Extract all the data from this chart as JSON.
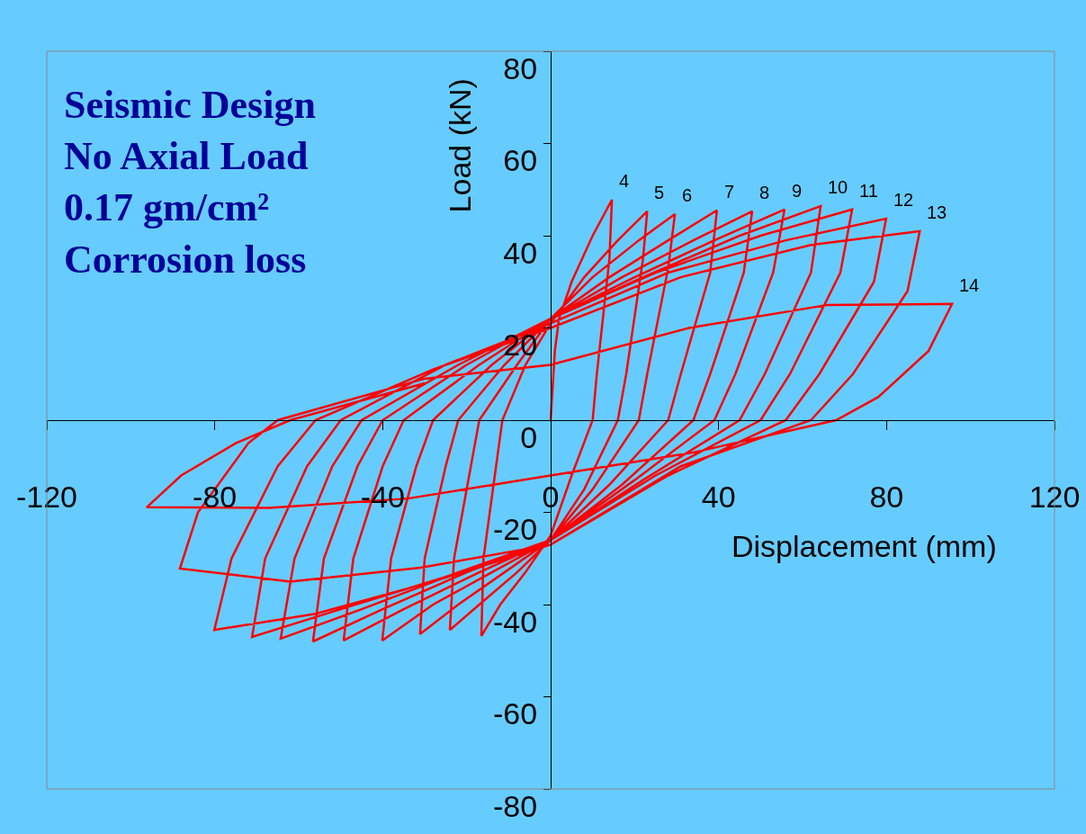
{
  "chart_data": {
    "type": "line",
    "title": "Seismic Design\nNo Axial Load\n0.17 gm/cm²\nCorrosion loss",
    "xlabel": "Displacement (mm)",
    "ylabel": "Load (kN)",
    "xlim": [
      -120,
      120
    ],
    "xticks": [
      -120,
      -80,
      -40,
      0,
      40,
      80,
      120
    ],
    "ylim": [
      -80,
      80
    ],
    "yticks": [
      -80,
      -60,
      -40,
      -20,
      0,
      20,
      40,
      60,
      80
    ],
    "grid": false,
    "marker": "none",
    "line_style": "solid",
    "series": [
      {
        "color": "#ff0000",
        "x": [
          0,
          1,
          2,
          5,
          10,
          14.6,
          14,
          11,
          10,
          5,
          0,
          -6,
          -12,
          -16.5,
          -16,
          -13,
          -11.5,
          -6,
          0,
          8,
          16,
          23,
          22,
          18,
          16,
          8,
          0,
          -8,
          -17,
          -24,
          -23,
          -19,
          -17,
          -8,
          0,
          10,
          21,
          29.6,
          28,
          23,
          21,
          10,
          0,
          -11,
          -22,
          -31.1,
          -30,
          -25,
          -22,
          -11,
          0,
          14,
          28,
          39.6,
          38,
          31,
          28,
          14,
          0,
          -14,
          -28,
          -40.1,
          -38,
          -32,
          -28,
          -14,
          0,
          17,
          34,
          48,
          46,
          38,
          34,
          17,
          0,
          -17,
          -35,
          -49.3,
          -47,
          -40,
          -35,
          -17,
          0,
          20,
          39,
          55.7,
          53,
          44,
          39,
          20,
          0,
          -20,
          -40,
          -56.6,
          -54,
          -46,
          -40,
          -20,
          0,
          22,
          45,
          64.3,
          62,
          51,
          45,
          22,
          0,
          -22,
          -45,
          -64.3,
          -61,
          -52,
          -45,
          -22,
          0,
          25,
          50,
          71.8,
          69,
          57,
          50,
          25,
          0,
          -25,
          -50,
          -71.1,
          -68,
          -58,
          -50,
          -25,
          0,
          28,
          56,
          79.9,
          77,
          64,
          56,
          28,
          0,
          -28,
          -56,
          -80.1,
          -76,
          -65,
          -56,
          -28,
          0,
          31,
          62,
          87.9,
          85,
          72,
          62,
          31,
          0,
          -31,
          -62,
          -88.3,
          -84,
          -72,
          -65,
          -30,
          0,
          33,
          66,
          95.6,
          90,
          78,
          68,
          34,
          0,
          -34,
          -67,
          -96.2,
          -88,
          -75,
          -62,
          -30
        ],
        "values": [
          0,
          15,
          22,
          30,
          40,
          47.8,
          35,
          10,
          0,
          -12,
          -25,
          -33,
          -40,
          -46.8,
          -30,
          -10,
          0,
          12,
          21,
          31,
          39,
          45.3,
          35,
          10,
          0,
          -15,
          -26,
          -33,
          -40,
          -45.5,
          -30,
          -10,
          0,
          12,
          22,
          31,
          39,
          44.7,
          33,
          10,
          0,
          -15,
          -26,
          -33,
          -40,
          -46.4,
          -30,
          -10,
          0,
          12,
          22,
          31,
          39,
          45.5,
          32,
          10,
          0,
          -14,
          -26,
          -33,
          -40,
          -47.8,
          -30,
          -10,
          0,
          12,
          22,
          31,
          39,
          45.3,
          32,
          10,
          0,
          -14,
          -26,
          -33,
          -41,
          -47.8,
          -30,
          -10,
          0,
          12,
          22,
          31,
          39,
          45.7,
          32,
          10,
          0,
          -13,
          -26,
          -33,
          -41,
          -48,
          -30,
          -10,
          0,
          12,
          22,
          31,
          40,
          46.4,
          32,
          10,
          0,
          -13,
          -26,
          -33,
          -41,
          -47.4,
          -30,
          -10,
          0,
          12,
          22,
          32,
          40,
          45.7,
          32,
          10,
          0,
          -12,
          -26,
          -34,
          -41,
          -47,
          -30,
          -10,
          0,
          12,
          21,
          32,
          39,
          43.7,
          30,
          10,
          0,
          -12,
          -27,
          -35,
          -42,
          -45.5,
          -30,
          -10,
          0,
          11,
          20,
          31,
          38,
          41,
          28,
          10,
          0,
          -10,
          -27,
          -32,
          -35,
          -32.2,
          -20,
          -5,
          0,
          9,
          12,
          20,
          25,
          25.2,
          15,
          5,
          0,
          -7,
          -12,
          -17,
          -19,
          -18.9,
          -12,
          -5,
          0,
          8
        ]
      }
    ],
    "annotations": [
      {
        "text": "4",
        "x": 14.6,
        "y": 47.8
      },
      {
        "text": "5",
        "x": 23,
        "y": 45.3
      },
      {
        "text": "6",
        "x": 29.6,
        "y": 44.7
      },
      {
        "text": "7",
        "x": 39.6,
        "y": 45.5
      },
      {
        "text": "8",
        "x": 48,
        "y": 45.3
      },
      {
        "text": "9",
        "x": 55.7,
        "y": 45.7
      },
      {
        "text": "10",
        "x": 64.3,
        "y": 46.4
      },
      {
        "text": "11",
        "x": 71.8,
        "y": 45.7
      },
      {
        "text": "12",
        "x": 79.9,
        "y": 43.7
      },
      {
        "text": "13",
        "x": 87.9,
        "y": 41
      },
      {
        "text": "14",
        "x": 95.6,
        "y": 25.2
      }
    ]
  }
}
